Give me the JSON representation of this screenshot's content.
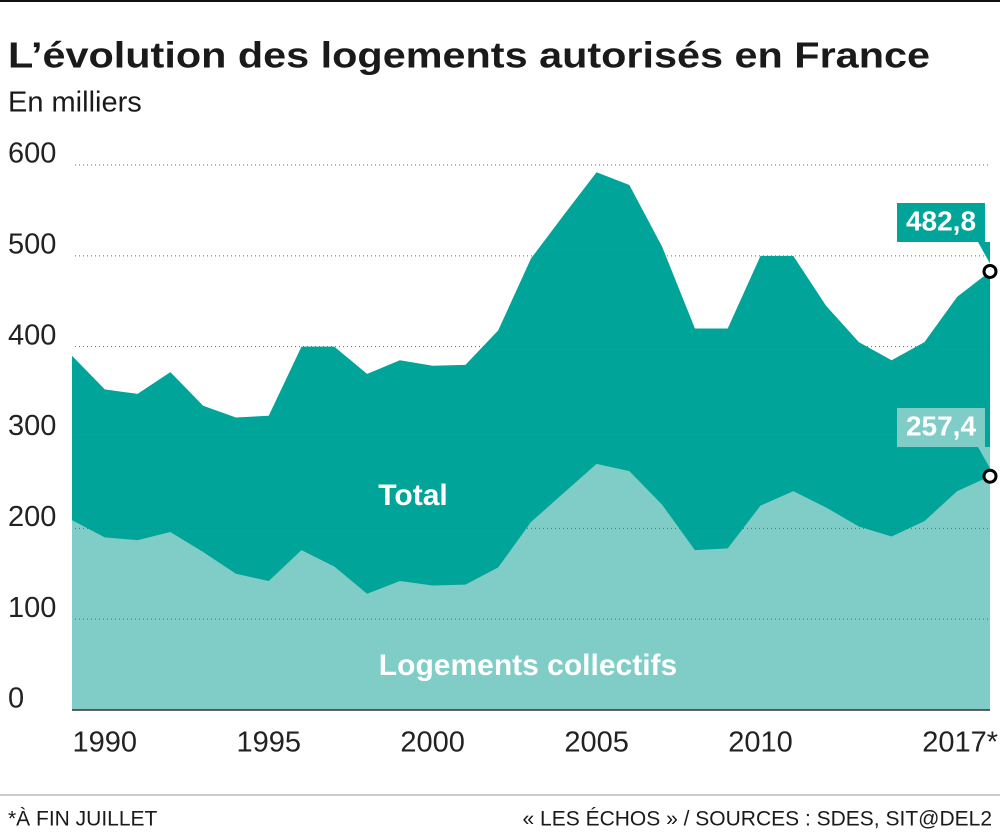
{
  "chart_data": {
    "type": "area",
    "title": "L’évolution des logements autorisés en France",
    "subtitle": "En milliers",
    "footnote": "*À FIN JUILLET",
    "source": "« LES ÉCHOS » / SOURCES : SDES, SIT@DEL2",
    "x": [
      1989,
      1990,
      1991,
      1992,
      1993,
      1994,
      1995,
      1996,
      1997,
      1998,
      1999,
      2000,
      2001,
      2002,
      2003,
      2004,
      2005,
      2006,
      2007,
      2008,
      2009,
      2010,
      2011,
      2012,
      2013,
      2014,
      2015,
      2016,
      2017
    ],
    "series": [
      {
        "name": "Total",
        "color": "#00a498",
        "values": [
          390,
          353,
          348,
          372,
          335,
          322,
          324,
          400,
          400,
          370,
          385,
          379,
          380,
          418,
          497,
          545,
          592,
          578,
          510,
          420,
          420,
          500,
          500,
          445,
          405,
          385,
          405,
          455,
          482.8
        ],
        "value_labels": [
          null,
          null,
          null,
          null,
          null,
          null,
          null,
          null,
          null,
          null,
          null,
          null,
          null,
          null,
          null,
          null,
          null,
          null,
          null,
          null,
          null,
          null,
          null,
          null,
          null,
          null,
          null,
          null,
          "482,8"
        ]
      },
      {
        "name": "Logements collectifs",
        "color": "#7fcdc6",
        "values": [
          209,
          190,
          187,
          196,
          174,
          150,
          142,
          176,
          158,
          128,
          142,
          137,
          138,
          157,
          207,
          239,
          271,
          263,
          226,
          176,
          178,
          225,
          241,
          223,
          202,
          191,
          208,
          241,
          257.4
        ],
        "value_labels": [
          null,
          null,
          null,
          null,
          null,
          null,
          null,
          null,
          null,
          null,
          null,
          null,
          null,
          null,
          null,
          null,
          null,
          null,
          null,
          null,
          null,
          null,
          null,
          null,
          null,
          null,
          null,
          null,
          "257,4"
        ]
      }
    ],
    "xlim": [
      1989,
      2017
    ],
    "xticks": [
      1990,
      1995,
      2000,
      2005,
      2010,
      {
        "value": 2017,
        "label": "2017*"
      }
    ],
    "ylim": [
      0,
      600
    ],
    "yticks": [
      0,
      100,
      200,
      300,
      400,
      500,
      600
    ],
    "grid": true
  }
}
